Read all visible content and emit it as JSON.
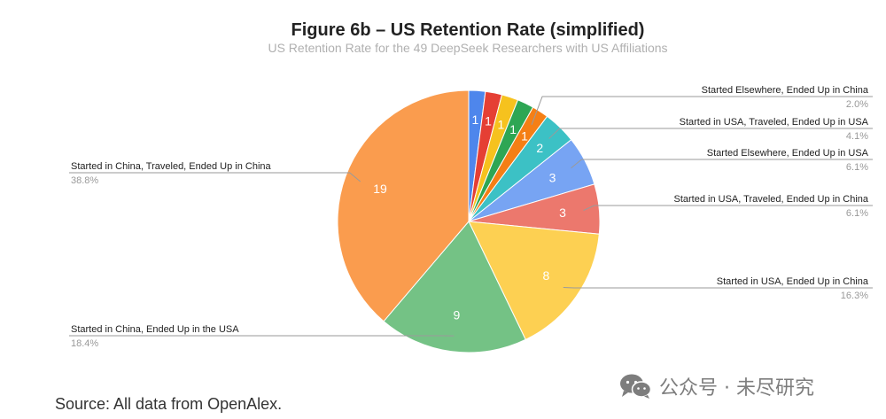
{
  "chart_data": {
    "type": "pie",
    "title": "Figure 6b – US Retention Rate (simplified)",
    "subtitle": "US Retention Rate for the 49 DeepSeek Researchers with US Affiliations",
    "total": 49,
    "slices": [
      {
        "value": 1,
        "color": "#4e86ec",
        "label": "",
        "percent": ""
      },
      {
        "value": 1,
        "color": "#e53f34",
        "label": "",
        "percent": ""
      },
      {
        "value": 1,
        "color": "#f6c21e",
        "label": "",
        "percent": ""
      },
      {
        "value": 1,
        "color": "#2ea654",
        "label": "",
        "percent": ""
      },
      {
        "value": 1,
        "color": "#f57f15",
        "label": "Started Elsewhere, Ended Up in China",
        "percent": "2.0%"
      },
      {
        "value": 2,
        "color": "#3cc1c5",
        "label": "Started in USA, Traveled, Ended Up in USA",
        "percent": "4.1%"
      },
      {
        "value": 3,
        "color": "#77a4f3",
        "label": "Started Elsewhere, Ended Up in USA",
        "percent": "6.1%"
      },
      {
        "value": 3,
        "color": "#ec786d",
        "label": "Started in USA, Traveled, Ended Up in China",
        "percent": "6.1%"
      },
      {
        "value": 8,
        "color": "#fdd052",
        "label": "Started in USA, Ended Up in China",
        "percent": "16.3%"
      },
      {
        "value": 9,
        "color": "#74c285",
        "label": "Started in China, Ended Up in the USA",
        "percent": "18.4%"
      },
      {
        "value": 19,
        "color": "#fa9c4e",
        "label": "Started in China, Traveled, Ended Up in China",
        "percent": "38.8%"
      }
    ]
  },
  "source": "Source: All data from OpenAlex.",
  "watermark": {
    "text": "公众号 · 未尽研究",
    "icon": "wechat-icon"
  }
}
